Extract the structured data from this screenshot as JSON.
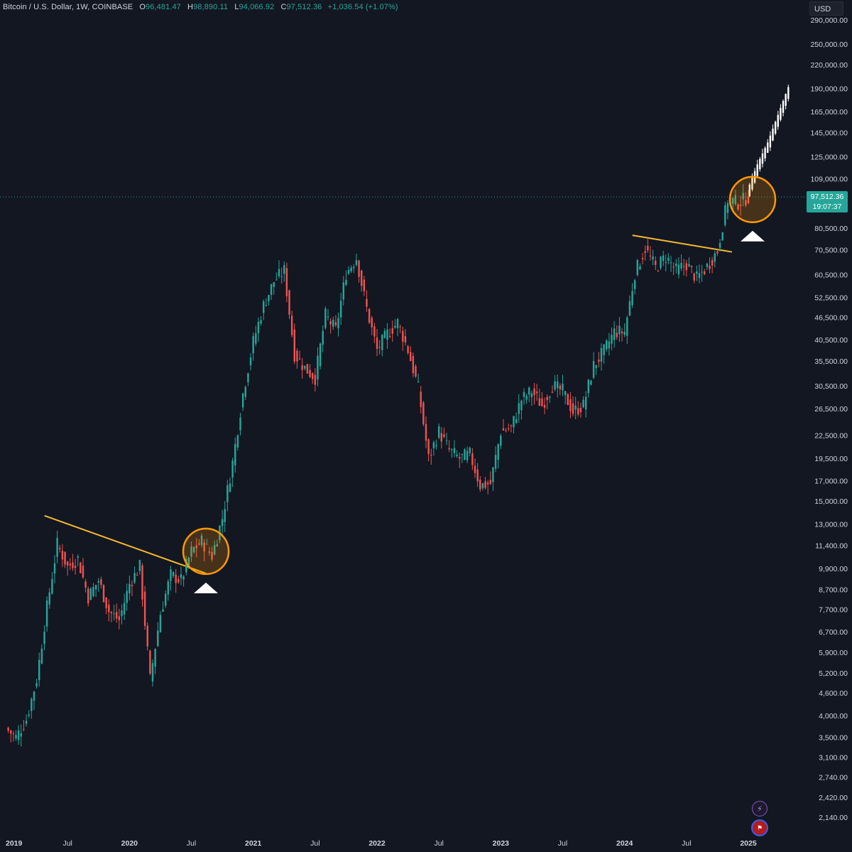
{
  "header": {
    "symbol": "Bitcoin / U.S. Dollar, 1W, COINBASE",
    "open_label": "O",
    "open": "96,481.47",
    "high_label": "H",
    "high": "98,890.11",
    "low_label": "L",
    "low": "94,066.92",
    "close_label": "C",
    "close": "97,512.36",
    "change": "+1,036.54 (+1.07%)"
  },
  "currency": "USD",
  "last_price": {
    "value": "97,512.36",
    "countdown": "19:07:37"
  },
  "colors": {
    "background": "#131722",
    "up": "#26a69a",
    "down": "#ef5350",
    "trendline": "#f5b82e",
    "projection": "#ffffff",
    "circle": "#ff9800"
  },
  "icons": [
    "spark-icon",
    "us-flag-icon"
  ],
  "chart_data": {
    "type": "candlestick",
    "scale": "log",
    "timeframe": "1W",
    "yaxis_ticks": [
      "290,000.00",
      "250,000.00",
      "220,000.00",
      "190,000.00",
      "165,000.00",
      "145,000.00",
      "125,000.00",
      "109,000.00",
      "80,500.00",
      "70,500.00",
      "60,500.00",
      "52,500.00",
      "46,500.00",
      "40,500.00",
      "35,500.00",
      "30,500.00",
      "26,500.00",
      "22,500.00",
      "19,500.00",
      "17,000.00",
      "15,000.00",
      "13,000.00",
      "11,400.00",
      "9,900.00",
      "8,700.00",
      "7,700.00",
      "6,700.00",
      "5,900.00",
      "5,200.00",
      "4,600.00",
      "4,000.00",
      "3,500.00",
      "3,100.00",
      "2,740.00",
      "2,420.00",
      "2,140.00"
    ],
    "xaxis_ticks": [
      "2019",
      "Jul",
      "2020",
      "Jul",
      "2021",
      "Jul",
      "2022",
      "Jul",
      "2023",
      "Jul",
      "2024",
      "Jul",
      "2025"
    ],
    "price_path": [
      [
        "2019-01",
        3700
      ],
      [
        "2019-02",
        3500
      ],
      [
        "2019-03",
        3900
      ],
      [
        "2019-04",
        5000
      ],
      [
        "2019-05",
        7800
      ],
      [
        "2019-06",
        11500
      ],
      [
        "2019-07",
        10000
      ],
      [
        "2019-08",
        10500
      ],
      [
        "2019-09",
        8300
      ],
      [
        "2019-10",
        9200
      ],
      [
        "2019-11",
        7600
      ],
      [
        "2019-12",
        7200
      ],
      [
        "2020-01",
        9000
      ],
      [
        "2020-02",
        10000
      ],
      [
        "2020-03",
        5000
      ],
      [
        "2020-04",
        7500
      ],
      [
        "2020-05",
        9500
      ],
      [
        "2020-06",
        9200
      ],
      [
        "2020-07",
        11000
      ],
      [
        "2020-08",
        11700
      ],
      [
        "2020-09",
        10700
      ],
      [
        "2020-10",
        13500
      ],
      [
        "2020-11",
        19000
      ],
      [
        "2020-12",
        29000
      ],
      [
        "2021-01",
        40000
      ],
      [
        "2021-02",
        50000
      ],
      [
        "2021-03",
        58000
      ],
      [
        "2021-04",
        62000
      ],
      [
        "2021-05",
        37000
      ],
      [
        "2021-06",
        34000
      ],
      [
        "2021-07",
        32000
      ],
      [
        "2021-08",
        47000
      ],
      [
        "2021-09",
        43000
      ],
      [
        "2021-10",
        61000
      ],
      [
        "2021-11",
        67000
      ],
      [
        "2021-12",
        49000
      ],
      [
        "2022-01",
        38000
      ],
      [
        "2022-02",
        42000
      ],
      [
        "2022-03",
        45000
      ],
      [
        "2022-04",
        38000
      ],
      [
        "2022-05",
        30000
      ],
      [
        "2022-06",
        19500
      ],
      [
        "2022-07",
        23000
      ],
      [
        "2022-08",
        20500
      ],
      [
        "2022-09",
        19500
      ],
      [
        "2022-10",
        20000
      ],
      [
        "2022-11",
        16500
      ],
      [
        "2022-12",
        16700
      ],
      [
        "2023-01",
        23000
      ],
      [
        "2023-02",
        23500
      ],
      [
        "2023-03",
        28000
      ],
      [
        "2023-04",
        29500
      ],
      [
        "2023-05",
        27000
      ],
      [
        "2023-06",
        30500
      ],
      [
        "2023-07",
        29500
      ],
      [
        "2023-08",
        26000
      ],
      [
        "2023-09",
        27000
      ],
      [
        "2023-10",
        34500
      ],
      [
        "2023-11",
        37700
      ],
      [
        "2023-12",
        42500
      ],
      [
        "2024-01",
        42500
      ],
      [
        "2024-02",
        61000
      ],
      [
        "2024-03",
        71000
      ],
      [
        "2024-04",
        63000
      ],
      [
        "2024-05",
        67500
      ],
      [
        "2024-06",
        62000
      ],
      [
        "2024-07",
        64500
      ],
      [
        "2024-08",
        59000
      ],
      [
        "2024-09",
        63500
      ],
      [
        "2024-10",
        70000
      ],
      [
        "2024-11",
        96000
      ],
      [
        "2024-12",
        94000
      ],
      [
        "2025-01",
        97500
      ]
    ],
    "projection": [
      [
        "2025-01",
        100000
      ],
      [
        "2025-02",
        118000
      ],
      [
        "2025-03",
        135000
      ],
      [
        "2025-04",
        160000
      ],
      [
        "2025-05",
        190000
      ]
    ],
    "trendlines": [
      {
        "from": [
          "2019-06",
          13700
        ],
        "to": [
          "2020-08",
          9600
        ]
      },
      {
        "from": [
          "2024-03",
          77000
        ],
        "to": [
          "2024-11",
          69500
        ]
      }
    ],
    "highlights": [
      {
        "center": [
          "2020-08",
          11000
        ],
        "marker": "up-arrow"
      },
      {
        "center": [
          "2025-01",
          96000
        ],
        "marker": "up-arrow"
      }
    ]
  }
}
